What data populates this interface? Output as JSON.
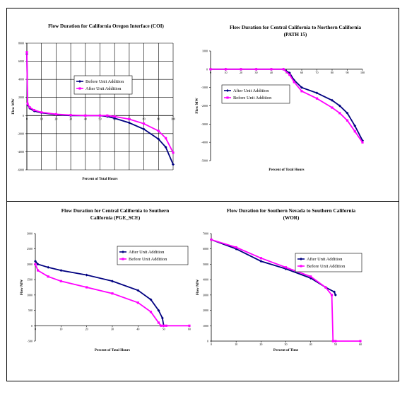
{
  "chart_data": [
    {
      "type": "line",
      "title": "Flow Duration for California Oregon Interface (COI)",
      "subtitle": "",
      "xlabel": "Percent of Total Hours",
      "ylabel": "Flow MW",
      "xlim": [
        0,
        100
      ],
      "ylim": [
        -6000,
        8000
      ],
      "xticks": [
        "0",
        "10",
        "20",
        "30",
        "40",
        "50",
        "60",
        "70",
        "80",
        "90",
        "100"
      ],
      "yticks": [
        "8000",
        "6000",
        "4000",
        "2000",
        "0",
        "-2000",
        "-4000",
        "-6000"
      ],
      "grid": true,
      "legend_position": "center-right",
      "series": [
        {
          "name": "Before Unit Addition",
          "color": "#000080",
          "marker": "diamond",
          "x": [
            0,
            0.5,
            2,
            5,
            10,
            20,
            30,
            40,
            50,
            55,
            60,
            70,
            80,
            90,
            95,
            100
          ],
          "y": [
            6800,
            1200,
            800,
            500,
            300,
            100,
            0,
            0,
            0,
            -100,
            -300,
            -800,
            -1500,
            -2600,
            -3500,
            -5400
          ]
        },
        {
          "name": "After Unit Addition",
          "color": "#ff00ff",
          "marker": "square",
          "x": [
            0,
            0.5,
            2,
            5,
            10,
            20,
            30,
            40,
            50,
            55,
            60,
            70,
            80,
            90,
            95,
            100
          ],
          "y": [
            7000,
            1300,
            900,
            600,
            350,
            150,
            50,
            0,
            0,
            0,
            -100,
            -400,
            -900,
            -1700,
            -2500,
            -4100
          ]
        }
      ]
    },
    {
      "type": "line",
      "title": "Flow Duration for Central California to Northern California",
      "subtitle": "(PATH 15)",
      "xlabel": "Percent of Total Hours",
      "ylabel": "Flow MW",
      "xlim": [
        0,
        100
      ],
      "ylim": [
        -5000,
        1000
      ],
      "xticks": [
        "0",
        "10",
        "20",
        "30",
        "40",
        "50",
        "60",
        "70",
        "80",
        "90",
        "100"
      ],
      "yticks": [
        "1000",
        "0",
        "-1000",
        "-2000",
        "-3000",
        "-4000",
        "-5000"
      ],
      "grid": false,
      "legend_position": "center-left",
      "series": [
        {
          "name": "After Unit Addition",
          "color": "#000080",
          "marker": "diamond",
          "x": [
            0,
            10,
            20,
            30,
            40,
            48,
            52,
            55,
            60,
            70,
            80,
            85,
            90,
            95,
            100
          ],
          "y": [
            0,
            0,
            0,
            0,
            0,
            0,
            -200,
            -600,
            -1000,
            -1300,
            -1700,
            -2000,
            -2400,
            -3100,
            -3900
          ]
        },
        {
          "name": "Before Unit Addition",
          "color": "#ff00ff",
          "marker": "square",
          "x": [
            0,
            10,
            20,
            30,
            40,
            48,
            52,
            55,
            60,
            70,
            80,
            85,
            90,
            95,
            100
          ],
          "y": [
            0,
            0,
            0,
            0,
            0,
            0,
            -300,
            -700,
            -1200,
            -1600,
            -2100,
            -2400,
            -2800,
            -3400,
            -4000
          ]
        }
      ]
    },
    {
      "type": "line",
      "title": "Flow Duration for Central California to Southern",
      "subtitle": "California (PGE_SCE)",
      "xlabel": "Percent of Total Hours",
      "ylabel": "Flow MW",
      "xlim": [
        0,
        60
      ],
      "ylim": [
        -500,
        3000
      ],
      "xticks": [
        "0",
        "10",
        "20",
        "30",
        "40",
        "50",
        "60"
      ],
      "yticks": [
        "3000",
        "2500",
        "2000",
        "1500",
        "1000",
        "500",
        "0",
        "-500"
      ],
      "grid": false,
      "legend_position": "top-right",
      "series": [
        {
          "name": "After Unit Addition",
          "color": "#000080",
          "marker": "diamond",
          "x": [
            0,
            1,
            5,
            10,
            20,
            30,
            40,
            45,
            48,
            49.5,
            50
          ],
          "y": [
            2100,
            2000,
            1900,
            1800,
            1650,
            1450,
            1150,
            850,
            500,
            250,
            0
          ]
        },
        {
          "name": "Before Unit Addition",
          "color": "#ff00ff",
          "marker": "square",
          "x": [
            0,
            1,
            5,
            10,
            20,
            30,
            40,
            45,
            48,
            49,
            50,
            51,
            60
          ],
          "y": [
            2000,
            1800,
            1600,
            1450,
            1250,
            1050,
            750,
            450,
            100,
            0,
            0,
            0,
            0
          ]
        }
      ]
    },
    {
      "type": "line",
      "title": "Flow Duration for Southern Nevada to Southern California",
      "subtitle": "(WOR)",
      "xlabel": "Percent of Time",
      "ylabel": "Flow MW",
      "xlim": [
        0,
        60
      ],
      "ylim": [
        0,
        7000
      ],
      "xticks": [
        "0",
        "10",
        "20",
        "30",
        "40",
        "50",
        "60"
      ],
      "yticks": [
        "7000",
        "6000",
        "5000",
        "4000",
        "3000",
        "2000",
        "1000",
        "0"
      ],
      "grid": false,
      "legend_position": "top-right",
      "series": [
        {
          "name": "After Unit Addition",
          "color": "#000080",
          "marker": "diamond",
          "x": [
            0,
            10,
            20,
            30,
            40,
            46,
            49.5,
            50
          ],
          "y": [
            6600,
            6000,
            5200,
            4700,
            4100,
            3500,
            3200,
            3000
          ]
        },
        {
          "name": "Before Unit Addition",
          "color": "#ff00ff",
          "marker": "square",
          "x": [
            0,
            10,
            20,
            30,
            40,
            46,
            48.5,
            49,
            50,
            60
          ],
          "y": [
            6600,
            6100,
            5400,
            4800,
            4200,
            3500,
            3000,
            0,
            0,
            0
          ]
        }
      ]
    }
  ]
}
